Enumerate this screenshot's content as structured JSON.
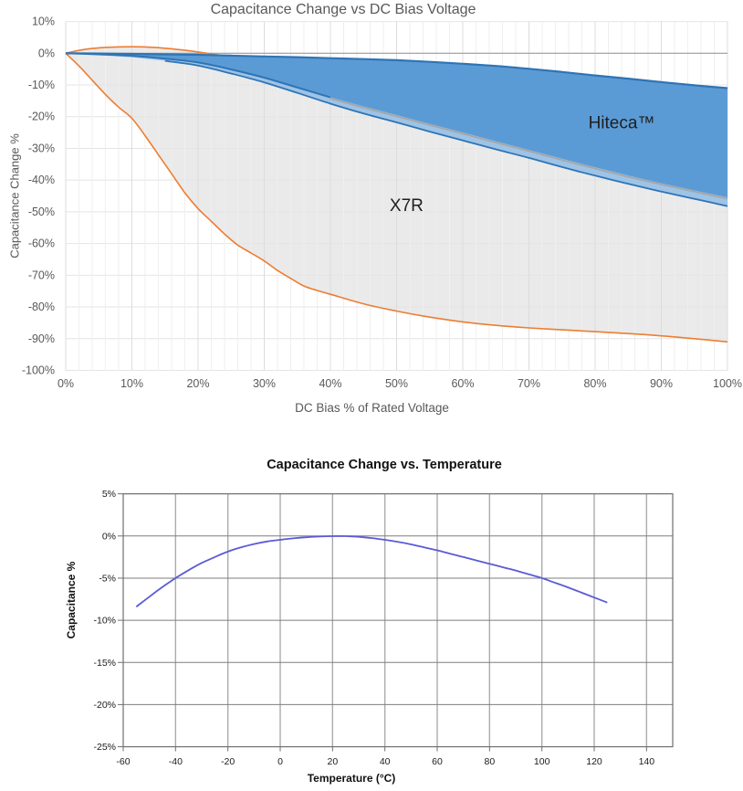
{
  "page": {
    "background": "#FFFFFF"
  },
  "chart_data": [
    {
      "type": "area",
      "title": "Capacitance Change vs DC Bias Voltage",
      "xlabel": "DC Bias % of Rated Voltage",
      "ylabel": "Capacitance Change %",
      "xlim": [
        0,
        100
      ],
      "ylim": [
        -100,
        10
      ],
      "grid": {
        "minor_x_step": 2,
        "major_x_step": 10,
        "major_y_step": 10,
        "legend": "none"
      },
      "x_tick_values": [
        0,
        10,
        20,
        30,
        40,
        50,
        60,
        70,
        80,
        90,
        100
      ],
      "x_tick_labels": [
        "0%",
        "10%",
        "20%",
        "30%",
        "40%",
        "50%",
        "60%",
        "70%",
        "80%",
        "90%",
        "100%"
      ],
      "y_tick_values": [
        10,
        0,
        -10,
        -20,
        -30,
        -40,
        -50,
        -60,
        -70,
        -80,
        -90,
        -100
      ],
      "y_tick_labels": [
        "10%",
        "0%",
        "-10%",
        "-20%",
        "-30%",
        "-40%",
        "-50%",
        "-60%",
        "-70%",
        "-80%",
        "-90%",
        "-100%"
      ],
      "colors": {
        "hiteca_fill": "#5B9BD5",
        "hiteca_edge": "#2E74B5",
        "lightblue_fill": "#9DC3E6",
        "gray_fill": "#EAEAEA",
        "gray_edge": "#A6A6A6",
        "orange": "#ED7D31",
        "minor_grid": "#EFEFEF",
        "major_grid": "#DCDCDC",
        "h_grid": "#E4E4E4",
        "zero_line": "#9E9E9E",
        "tick_text": "#595959",
        "annotation_text": "#1F1F1F"
      },
      "annotations": [
        {
          "text": "Hiteca™",
          "x": 84,
          "y": -22
        },
        {
          "text": "X7R",
          "x": 51.5,
          "y": -48
        }
      ],
      "series": [
        {
          "name": "Hiteca™ maximum",
          "role": "hiteca_max",
          "points": [
            [
              0,
              0
            ],
            [
              5,
              -0.1
            ],
            [
              10,
              -0.2
            ],
            [
              15,
              -0.35
            ],
            [
              20,
              -0.5
            ],
            [
              25,
              -0.75
            ],
            [
              30,
              -1.0
            ],
            [
              35,
              -1.25
            ],
            [
              40,
              -1.55
            ],
            [
              45,
              -1.85
            ],
            [
              50,
              -2.2
            ],
            [
              55,
              -2.7
            ],
            [
              60,
              -3.3
            ],
            [
              65,
              -4.0
            ],
            [
              70,
              -4.9
            ],
            [
              75,
              -5.9
            ],
            [
              80,
              -7.0
            ],
            [
              85,
              -8.0
            ],
            [
              90,
              -9.1
            ],
            [
              95,
              -10.1
            ],
            [
              100,
              -11.0
            ]
          ]
        },
        {
          "name": "Hiteca™ minimum",
          "role": "hiteca_min",
          "points": [
            [
              0,
              0
            ],
            [
              5,
              -0.35
            ],
            [
              10,
              -0.8
            ],
            [
              15,
              -1.7
            ],
            [
              20,
              -2.9
            ],
            [
              25,
              -5.1
            ],
            [
              30,
              -7.7
            ],
            [
              35,
              -10.8
            ],
            [
              40,
              -13.9
            ],
            [
              45,
              -16.8
            ],
            [
              50,
              -19.5
            ],
            [
              55,
              -22.3
            ],
            [
              60,
              -25.0
            ],
            [
              65,
              -27.8
            ],
            [
              70,
              -30.5
            ],
            [
              75,
              -33.3
            ],
            [
              80,
              -36.0
            ],
            [
              85,
              -38.6
            ],
            [
              90,
              -41.0
            ],
            [
              95,
              -43.3
            ],
            [
              100,
              -45.5
            ]
          ]
        },
        {
          "name": "Hiteca™ band lower edge",
          "role": "band_bottom",
          "points": [
            [
              0,
              0
            ],
            [
              5,
              -0.6
            ],
            [
              10,
              -1.3
            ],
            [
              15,
              -2.4
            ],
            [
              20,
              -3.9
            ],
            [
              25,
              -6.4
            ],
            [
              30,
              -9.2
            ],
            [
              35,
              -12.5
            ],
            [
              40,
              -15.9
            ],
            [
              45,
              -19.0
            ],
            [
              50,
              -21.8
            ],
            [
              55,
              -24.7
            ],
            [
              60,
              -27.5
            ],
            [
              65,
              -30.3
            ],
            [
              70,
              -33.0
            ],
            [
              75,
              -35.9
            ],
            [
              80,
              -38.6
            ],
            [
              85,
              -41.2
            ],
            [
              90,
              -43.6
            ],
            [
              95,
              -45.9
            ],
            [
              100,
              -48.2
            ]
          ]
        },
        {
          "name": "X7R maximum",
          "role": "x7r_max",
          "points": [
            [
              0,
              0
            ],
            [
              2,
              0.9
            ],
            [
              4,
              1.5
            ],
            [
              6,
              1.85
            ],
            [
              8,
              2.0
            ],
            [
              10,
              2.05
            ],
            [
              12,
              2.0
            ],
            [
              14,
              1.75
            ],
            [
              16,
              1.4
            ],
            [
              18,
              0.95
            ],
            [
              20,
              0.4
            ],
            [
              22,
              -0.2
            ],
            [
              24,
              -0.85
            ]
          ]
        },
        {
          "name": "X7R minimum",
          "role": "x7r_min",
          "points": [
            [
              0,
              0
            ],
            [
              2,
              -4
            ],
            [
              4,
              -8.5
            ],
            [
              6,
              -13
            ],
            [
              8,
              -17
            ],
            [
              10,
              -20.5
            ],
            [
              12,
              -26
            ],
            [
              14,
              -32
            ],
            [
              16,
              -38
            ],
            [
              18,
              -44
            ],
            [
              20,
              -49
            ],
            [
              22,
              -53
            ],
            [
              24,
              -57
            ],
            [
              26,
              -60.5
            ],
            [
              28,
              -63
            ],
            [
              30,
              -65.5
            ],
            [
              32,
              -68.5
            ],
            [
              34,
              -71
            ],
            [
              36,
              -73.4
            ],
            [
              38,
              -74.8
            ],
            [
              40,
              -76
            ],
            [
              45,
              -79
            ],
            [
              50,
              -81.3
            ],
            [
              55,
              -83.2
            ],
            [
              60,
              -84.7
            ],
            [
              65,
              -85.8
            ],
            [
              70,
              -86.6
            ],
            [
              75,
              -87.2
            ],
            [
              80,
              -87.8
            ],
            [
              85,
              -88.4
            ],
            [
              90,
              -89.1
            ],
            [
              95,
              -90
            ],
            [
              100,
              -91
            ]
          ]
        }
      ]
    },
    {
      "type": "line",
      "title": "Capacitance Change vs. Temperature",
      "xlabel": "Temperature (°C)",
      "ylabel": "Capacitance %",
      "xlim": [
        -60,
        150
      ],
      "ylim": [
        -25,
        5
      ],
      "grid": {
        "major_x_step": 20,
        "major_y_step": 5,
        "legend": "none"
      },
      "x_tick_values": [
        -60,
        -40,
        -20,
        0,
        20,
        40,
        60,
        80,
        100,
        120,
        140
      ],
      "x_tick_labels": [
        "-60",
        "-40",
        "-20",
        "0",
        "20",
        "40",
        "60",
        "80",
        "100",
        "120",
        "140"
      ],
      "y_tick_values": [
        5,
        0,
        -5,
        -10,
        -15,
        -20,
        -25
      ],
      "y_tick_labels": [
        "5%",
        "0%",
        "-5%",
        "-10%",
        "-15%",
        "-20%",
        "-25%"
      ],
      "colors": {
        "line": "#5B5BD6",
        "v_grid": "#ABABAB",
        "h_grid": "#7E7E7E",
        "border": "#6E6E6E",
        "tick_text": "#1A1A1A"
      },
      "points": [
        [
          -55,
          -8.4
        ],
        [
          -50,
          -7.2
        ],
        [
          -45,
          -6.05
        ],
        [
          -40,
          -5.0
        ],
        [
          -35,
          -4.05
        ],
        [
          -30,
          -3.2
        ],
        [
          -25,
          -2.5
        ],
        [
          -20,
          -1.85
        ],
        [
          -15,
          -1.35
        ],
        [
          -10,
          -0.95
        ],
        [
          -5,
          -0.65
        ],
        [
          0,
          -0.45
        ],
        [
          5,
          -0.28
        ],
        [
          10,
          -0.15
        ],
        [
          15,
          -0.06
        ],
        [
          20,
          -0.02
        ],
        [
          25,
          -0.02
        ],
        [
          30,
          -0.1
        ],
        [
          35,
          -0.25
        ],
        [
          40,
          -0.45
        ],
        [
          45,
          -0.7
        ],
        [
          50,
          -1.0
        ],
        [
          55,
          -1.35
        ],
        [
          60,
          -1.7
        ],
        [
          65,
          -2.1
        ],
        [
          70,
          -2.5
        ],
        [
          75,
          -2.9
        ],
        [
          80,
          -3.3
        ],
        [
          85,
          -3.7
        ],
        [
          90,
          -4.1
        ],
        [
          95,
          -4.55
        ],
        [
          100,
          -5.0
        ],
        [
          105,
          -5.55
        ],
        [
          110,
          -6.1
        ],
        [
          115,
          -6.7
        ],
        [
          120,
          -7.3
        ],
        [
          125,
          -7.9
        ]
      ]
    }
  ]
}
